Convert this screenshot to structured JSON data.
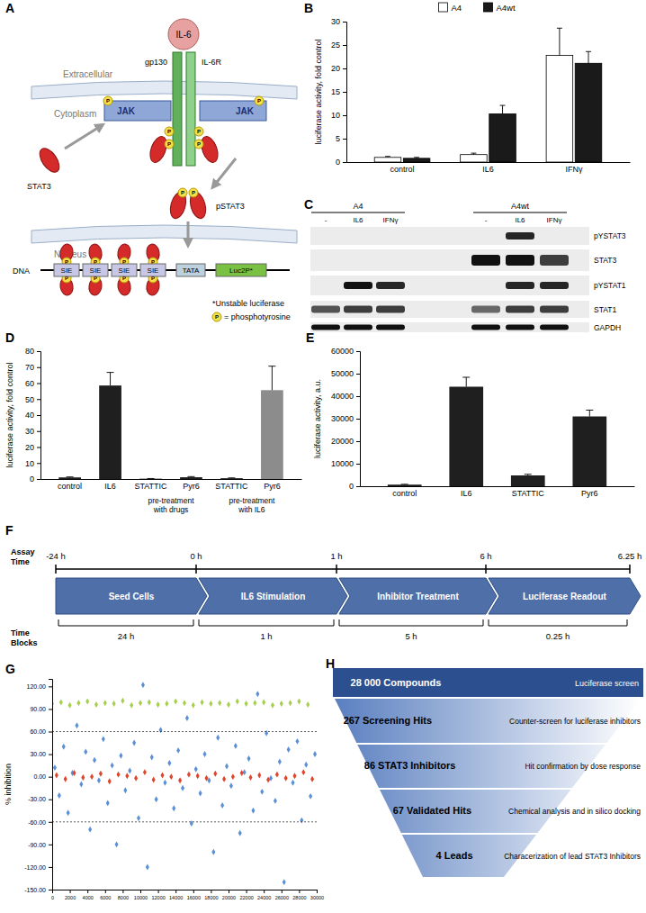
{
  "panel_labels": [
    "A",
    "B",
    "C",
    "D",
    "E",
    "F",
    "G",
    "H"
  ],
  "chart_data": [
    {
      "type": "bar",
      "ylabel": "luciferase activity, fold control",
      "categories": [
        "control",
        "IL6",
        "IFNγ"
      ],
      "series": [
        {
          "name": "A4",
          "color": "#ffffff",
          "values": [
            1,
            1.6,
            22.8
          ],
          "errors": [
            0.2,
            0.3,
            5.8
          ]
        },
        {
          "name": "A4wt",
          "color": "#1a1a1a",
          "values": [
            0.8,
            10.3,
            21.1
          ],
          "errors": [
            0.2,
            1.8,
            2.5
          ]
        }
      ],
      "ylim": [
        0,
        30
      ],
      "yticks": [
        0,
        5,
        10,
        15,
        20,
        25,
        30
      ],
      "legend": "top"
    },
    {
      "type": "bar",
      "ylabel": "luciferase activity, fold control",
      "categories": [
        "control",
        "IL6",
        "STATTIC",
        "Pyr6",
        "STATTIC",
        "Pyr6"
      ],
      "group_labels": [
        null,
        null,
        "pre-treatment with drugs",
        null,
        "pre-treatment with IL6",
        null
      ],
      "values": [
        1,
        58.5,
        0.2,
        1.1,
        0.5,
        55.6
      ],
      "errors": [
        0.3,
        8.2,
        0.1,
        0.4,
        0.2,
        15
      ],
      "colors": [
        "#1f1f1f",
        "#1f1f1f",
        "#1f1f1f",
        "#1f1f1f",
        "#1f1f1f",
        "#8c8c8c"
      ],
      "ylim": [
        0,
        80
      ],
      "yticks": [
        0,
        10,
        20,
        30,
        40,
        50,
        60,
        70,
        80
      ]
    },
    {
      "type": "bar",
      "ylabel": "luciferase activity, a.u.",
      "categories": [
        "control",
        "IL6",
        "STATTIC",
        "Pyr6"
      ],
      "values": [
        700,
        44200,
        4800,
        31000
      ],
      "errors": [
        150,
        4200,
        500,
        2800
      ],
      "color": "#1f1f1f",
      "ylim": [
        0,
        60000
      ],
      "yticks": [
        0,
        10000,
        20000,
        30000,
        40000,
        50000,
        60000
      ]
    },
    {
      "type": "scatter",
      "ylabel": "% inhibition",
      "marker": "diamond",
      "xlim": [
        0,
        30000
      ],
      "xticks": [
        0,
        2000,
        4000,
        6000,
        8000,
        10000,
        12000,
        14000,
        16000,
        18000,
        20000,
        22000,
        24000,
        26000,
        28000,
        30000
      ],
      "ylim": [
        -150,
        130
      ],
      "yticks": [
        {
          "value": 120,
          "label": "120.00"
        },
        {
          "value": 90,
          "label": "90.00"
        },
        {
          "value": 60,
          "label": "60.00"
        },
        {
          "value": 30,
          "label": "30.00"
        },
        {
          "value": 0,
          "label": "0.00"
        },
        {
          "value": -30,
          "label": "-30.00"
        },
        {
          "value": -60,
          "label": "-60.00"
        },
        {
          "value": -90,
          "label": "-90.00"
        },
        {
          "value": -120,
          "label": "-120.00"
        },
        {
          "value": -150,
          "label": "-150.00"
        }
      ],
      "reference_lines": [
        60,
        -60
      ],
      "series": [
        {
          "color": "#5b8fd6",
          "x": [
            300,
            800,
            1300,
            1800,
            2300,
            2800,
            3300,
            3800,
            4300,
            4800,
            5300,
            5800,
            6300,
            6800,
            7300,
            7800,
            8300,
            8800,
            9300,
            9800,
            10300,
            10800,
            11300,
            11800,
            12300,
            12800,
            13300,
            13800,
            14300,
            14800,
            15300,
            15800,
            16300,
            16800,
            17300,
            17800,
            18300,
            18800,
            19300,
            19800,
            20300,
            20800,
            21300,
            21800,
            22300,
            22800,
            23300,
            23800,
            24300,
            24800,
            25300,
            25800,
            26300,
            26800,
            27300,
            27800,
            28300,
            28800,
            29300,
            29800
          ],
          "values": [
            12,
            -25,
            40,
            -48,
            5,
            68,
            -10,
            33,
            -70,
            22,
            -5,
            50,
            -35,
            15,
            -90,
            28,
            -18,
            8,
            45,
            -55,
            122,
            -120,
            26,
            -30,
            62,
            -8,
            18,
            -42,
            35,
            -15,
            78,
            -62,
            10,
            -22,
            30,
            -5,
            -100,
            52,
            -38,
            14,
            -12,
            41,
            -75,
            6,
            24,
            -45,
            110,
            -20,
            58,
            -2,
            -32,
            20,
            -140,
            36,
            -8,
            47,
            -58,
            16,
            -26,
            30
          ]
        },
        {
          "color": "#e0452b",
          "x": [
            500,
            1500,
            2500,
            3500,
            4500,
            5500,
            6500,
            7500,
            8500,
            9500,
            10500,
            11500,
            12500,
            13500,
            14500,
            15500,
            16500,
            17500,
            18500,
            19500,
            20500,
            21500,
            22500,
            23500,
            24500,
            25500,
            26500,
            27500,
            28500,
            29500
          ],
          "values": [
            2,
            -3,
            5,
            -1,
            0,
            4,
            -6,
            3,
            1,
            -2,
            6,
            -4,
            2,
            0,
            -5,
            3,
            1,
            -2,
            4,
            -3,
            0,
            5,
            -1,
            2,
            -4,
            3,
            -2,
            1,
            6,
            -3
          ]
        },
        {
          "color": "#a5cf4c",
          "x": [
            0,
            1000,
            2000,
            3000,
            4000,
            5000,
            6000,
            7000,
            8000,
            9000,
            10000,
            11000,
            12000,
            13000,
            14000,
            15000,
            16000,
            17000,
            18000,
            19000,
            20000,
            21000,
            22000,
            23000,
            24000,
            25000,
            26000,
            27000,
            28000,
            29000
          ],
          "values": [
            97,
            99,
            95,
            98,
            100,
            96,
            98,
            97,
            101,
            95,
            98,
            99,
            96,
            97,
            100,
            98,
            95,
            99,
            97,
            98,
            96,
            100,
            97,
            98,
            99,
            95,
            97,
            98,
            100,
            96
          ]
        }
      ]
    }
  ],
  "diagram_a": {
    "ligand": "IL-6",
    "compartments": [
      "Extracellular",
      "Cytoplasm",
      "Nucleus"
    ],
    "receptors": [
      "gp130",
      "IL-6R"
    ],
    "kinase": "JAK",
    "stat": "STAT3",
    "pstat": "pSTAT3",
    "dna": "DNA",
    "promoter": [
      "SIE",
      "SIE",
      "SIE",
      "SIE",
      "TATA",
      "Luc2P*"
    ],
    "notes": [
      "*Unstable luciferase",
      "= phosphotyrosine"
    ],
    "phospho": "P"
  },
  "blot_c": {
    "groups": [
      "A4",
      "A4wt"
    ],
    "lanes": [
      "-",
      "IL6",
      "IFNγ",
      "-",
      "IL6",
      "IFNγ"
    ],
    "rows": [
      {
        "label": "pYSTAT3",
        "signal": [
          0,
          0,
          0,
          0,
          0.9,
          0
        ]
      },
      {
        "label": "STAT3",
        "signal": [
          0,
          0,
          0,
          1,
          1,
          0.8
        ]
      },
      {
        "label": "pYSTAT1",
        "signal": [
          0,
          1,
          0.9,
          0,
          0.9,
          0.9
        ]
      },
      {
        "label": "STAT1",
        "signal": [
          0.7,
          0.8,
          0.8,
          0.6,
          0.8,
          0.8
        ]
      },
      {
        "label": "GAPDH",
        "signal": [
          1,
          1,
          1,
          1,
          1,
          1
        ]
      }
    ]
  },
  "timeline_f": {
    "axis_label": "Assay Time",
    "times": [
      "-24 h",
      "0 h",
      "1 h",
      "6 h",
      "6.25 h"
    ],
    "steps": [
      "Seed Cells",
      "IL6 Stimulation",
      "Inhibitor Treatment",
      "Luciferase Readout"
    ],
    "blocks_label": "Time Blocks",
    "durations": [
      "24 h",
      "1 h",
      "5 h",
      "0.25 h"
    ]
  },
  "funnel_h": {
    "stages": [
      {
        "label": "28 000 Compounds",
        "description": "Luciferase screen"
      },
      {
        "label": "267 Screening Hits",
        "description": "Counter-screen for luciferase inhibitors"
      },
      {
        "label": "86 STAT3 Inhibitors",
        "description": "Hit confirmation by dose response"
      },
      {
        "label": "67 Validated Hits",
        "description": "Chemical analysis and in silico docking"
      },
      {
        "label": "4 Leads",
        "description": "Characerization of lead STAT3 Inhibitors"
      }
    ]
  }
}
